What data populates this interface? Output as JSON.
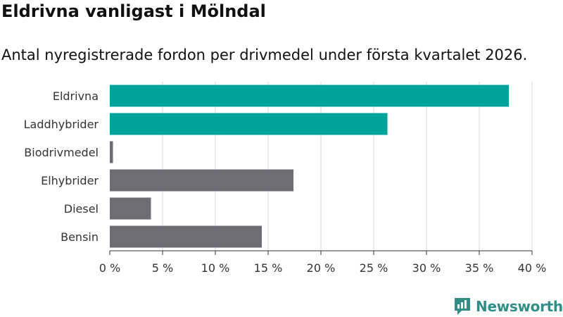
{
  "header": {
    "title": "Eldrivna vanligast i Mölndal",
    "subtitle": "Antal nyregistrerade fordon per drivmedel under första kvartalet 2026."
  },
  "brand": {
    "name": "Newsworthy",
    "icon": "newsworthy-logo-icon"
  },
  "colors": {
    "highlight": "#00a39a",
    "default": "#6e6d73",
    "grid": "#d9d9d9",
    "axis": "#333333"
  },
  "chart_data": {
    "type": "bar",
    "orientation": "horizontal",
    "title": "Eldrivna vanligast i Mölndal",
    "subtitle": "Antal nyregistrerade fordon per drivmedel under första kvartalet 2026.",
    "categories": [
      "Eldrivna",
      "Laddhybrider",
      "Biodrivmedel",
      "Elhybrider",
      "Diesel",
      "Bensin"
    ],
    "values": [
      37.8,
      26.3,
      0.3,
      17.4,
      3.9,
      14.4
    ],
    "highlighted": [
      true,
      true,
      false,
      false,
      false,
      false
    ],
    "xlim": [
      0,
      40
    ],
    "xticks": [
      0,
      5,
      10,
      15,
      20,
      25,
      30,
      35,
      40
    ],
    "tick_labels": [
      "0 %",
      "5 %",
      "10 %",
      "15 %",
      "20 %",
      "25 %",
      "30 %",
      "35 %",
      "40 %"
    ],
    "xlabel": "",
    "ylabel": "",
    "grid": true,
    "legend": "none"
  }
}
